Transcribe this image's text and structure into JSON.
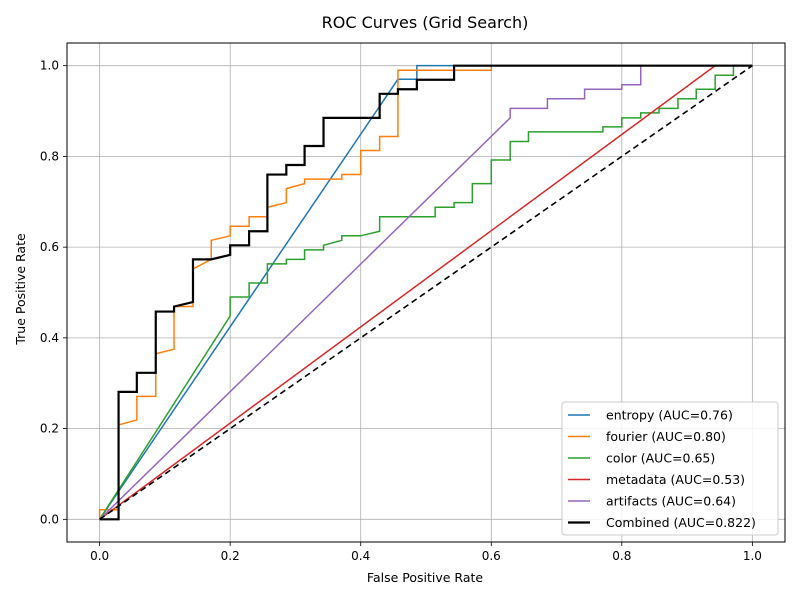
{
  "chart_data": {
    "type": "line",
    "title": "ROC Curves (Grid Search)",
    "xlabel": "False Positive Rate",
    "ylabel": "True Positive Rate",
    "xlim": [
      -0.05,
      1.05
    ],
    "ylim": [
      -0.05,
      1.05
    ],
    "xticks": [
      "0.0",
      "0.2",
      "0.4",
      "0.6",
      "0.8",
      "1.0"
    ],
    "yticks": [
      "0.0",
      "0.2",
      "0.4",
      "0.6",
      "0.8",
      "1.0"
    ],
    "grid": true,
    "legend_position": "bottom-right",
    "series": [
      {
        "name": "entropy (AUC=0.76)",
        "color": "#1f77b4",
        "width": 1.5,
        "points": [
          [
            0,
            0
          ],
          [
            0.457,
            0.97
          ],
          [
            0.486,
            0.97
          ],
          [
            0.486,
            1.0
          ],
          [
            1.0,
            1.0
          ]
        ]
      },
      {
        "name": "fourier (AUC=0.80)",
        "color": "#ff7f0e",
        "width": 1.5,
        "points": [
          [
            0,
            0
          ],
          [
            0,
            0.021
          ],
          [
            0.029,
            0.021
          ],
          [
            0.029,
            0.208
          ],
          [
            0.057,
            0.219
          ],
          [
            0.057,
            0.271
          ],
          [
            0.086,
            0.271
          ],
          [
            0.086,
            0.365
          ],
          [
            0.114,
            0.375
          ],
          [
            0.114,
            0.469
          ],
          [
            0.143,
            0.469
          ],
          [
            0.143,
            0.552
          ],
          [
            0.171,
            0.573
          ],
          [
            0.171,
            0.615
          ],
          [
            0.2,
            0.625
          ],
          [
            0.2,
            0.646
          ],
          [
            0.229,
            0.646
          ],
          [
            0.229,
            0.667
          ],
          [
            0.257,
            0.667
          ],
          [
            0.257,
            0.688
          ],
          [
            0.286,
            0.698
          ],
          [
            0.286,
            0.729
          ],
          [
            0.314,
            0.74
          ],
          [
            0.314,
            0.75
          ],
          [
            0.371,
            0.75
          ],
          [
            0.371,
            0.76
          ],
          [
            0.4,
            0.76
          ],
          [
            0.4,
            0.813
          ],
          [
            0.429,
            0.813
          ],
          [
            0.429,
            0.844
          ],
          [
            0.457,
            0.844
          ],
          [
            0.457,
            0.99
          ],
          [
            0.6,
            0.99
          ],
          [
            0.6,
            1.0
          ],
          [
            1.0,
            1.0
          ]
        ]
      },
      {
        "name": "color (AUC=0.65)",
        "color": "#2ca02c",
        "width": 1.5,
        "points": [
          [
            0,
            0
          ],
          [
            0.2,
            0.448
          ],
          [
            0.2,
            0.49
          ],
          [
            0.229,
            0.49
          ],
          [
            0.229,
            0.521
          ],
          [
            0.257,
            0.521
          ],
          [
            0.257,
            0.563
          ],
          [
            0.286,
            0.563
          ],
          [
            0.286,
            0.573
          ],
          [
            0.314,
            0.573
          ],
          [
            0.314,
            0.594
          ],
          [
            0.343,
            0.594
          ],
          [
            0.343,
            0.604
          ],
          [
            0.371,
            0.615
          ],
          [
            0.371,
            0.625
          ],
          [
            0.4,
            0.625
          ],
          [
            0.429,
            0.635
          ],
          [
            0.429,
            0.667
          ],
          [
            0.514,
            0.667
          ],
          [
            0.514,
            0.688
          ],
          [
            0.543,
            0.688
          ],
          [
            0.543,
            0.698
          ],
          [
            0.571,
            0.698
          ],
          [
            0.571,
            0.74
          ],
          [
            0.6,
            0.74
          ],
          [
            0.6,
            0.792
          ],
          [
            0.629,
            0.792
          ],
          [
            0.629,
            0.833
          ],
          [
            0.657,
            0.833
          ],
          [
            0.657,
            0.854
          ],
          [
            0.771,
            0.854
          ],
          [
            0.771,
            0.865
          ],
          [
            0.8,
            0.865
          ],
          [
            0.8,
            0.885
          ],
          [
            0.829,
            0.885
          ],
          [
            0.829,
            0.896
          ],
          [
            0.857,
            0.896
          ],
          [
            0.857,
            0.906
          ],
          [
            0.886,
            0.906
          ],
          [
            0.886,
            0.927
          ],
          [
            0.914,
            0.927
          ],
          [
            0.914,
            0.948
          ],
          [
            0.943,
            0.948
          ],
          [
            0.943,
            0.979
          ],
          [
            0.971,
            0.979
          ],
          [
            0.971,
            1.0
          ],
          [
            1.0,
            1.0
          ]
        ]
      },
      {
        "name": "metadata (AUC=0.53)",
        "color": "#d62728",
        "width": 1.5,
        "points": [
          [
            0,
            0
          ],
          [
            0.943,
            1.0
          ],
          [
            1.0,
            1.0
          ]
        ]
      },
      {
        "name": "artifacts (AUC=0.64)",
        "color": "#9467bd",
        "width": 1.5,
        "points": [
          [
            0,
            0
          ],
          [
            0.629,
            0.885
          ],
          [
            0.629,
            0.906
          ],
          [
            0.686,
            0.906
          ],
          [
            0.686,
            0.927
          ],
          [
            0.743,
            0.927
          ],
          [
            0.743,
            0.948
          ],
          [
            0.8,
            0.948
          ],
          [
            0.8,
            0.958
          ],
          [
            0.829,
            0.958
          ],
          [
            0.829,
            1.0
          ],
          [
            1.0,
            1.0
          ]
        ]
      },
      {
        "name": "Combined (AUC=0.822)",
        "color": "#000000",
        "width": 2.2,
        "points": [
          [
            0,
            0
          ],
          [
            0.029,
            0
          ],
          [
            0.029,
            0.281
          ],
          [
            0.057,
            0.281
          ],
          [
            0.057,
            0.323
          ],
          [
            0.086,
            0.323
          ],
          [
            0.086,
            0.458
          ],
          [
            0.114,
            0.458
          ],
          [
            0.114,
            0.469
          ],
          [
            0.143,
            0.479
          ],
          [
            0.143,
            0.573
          ],
          [
            0.171,
            0.573
          ],
          [
            0.2,
            0.583
          ],
          [
            0.2,
            0.604
          ],
          [
            0.229,
            0.604
          ],
          [
            0.229,
            0.635
          ],
          [
            0.257,
            0.635
          ],
          [
            0.257,
            0.76
          ],
          [
            0.286,
            0.76
          ],
          [
            0.286,
            0.781
          ],
          [
            0.314,
            0.781
          ],
          [
            0.314,
            0.823
          ],
          [
            0.343,
            0.823
          ],
          [
            0.343,
            0.885
          ],
          [
            0.429,
            0.885
          ],
          [
            0.429,
            0.938
          ],
          [
            0.457,
            0.938
          ],
          [
            0.457,
            0.948
          ],
          [
            0.486,
            0.948
          ],
          [
            0.486,
            0.969
          ],
          [
            0.543,
            0.969
          ],
          [
            0.543,
            1.0
          ],
          [
            1.0,
            1.0
          ]
        ]
      }
    ],
    "reference_line": {
      "color": "#000000",
      "dashed": true,
      "points": [
        [
          0,
          0
        ],
        [
          1,
          1
        ]
      ]
    }
  }
}
